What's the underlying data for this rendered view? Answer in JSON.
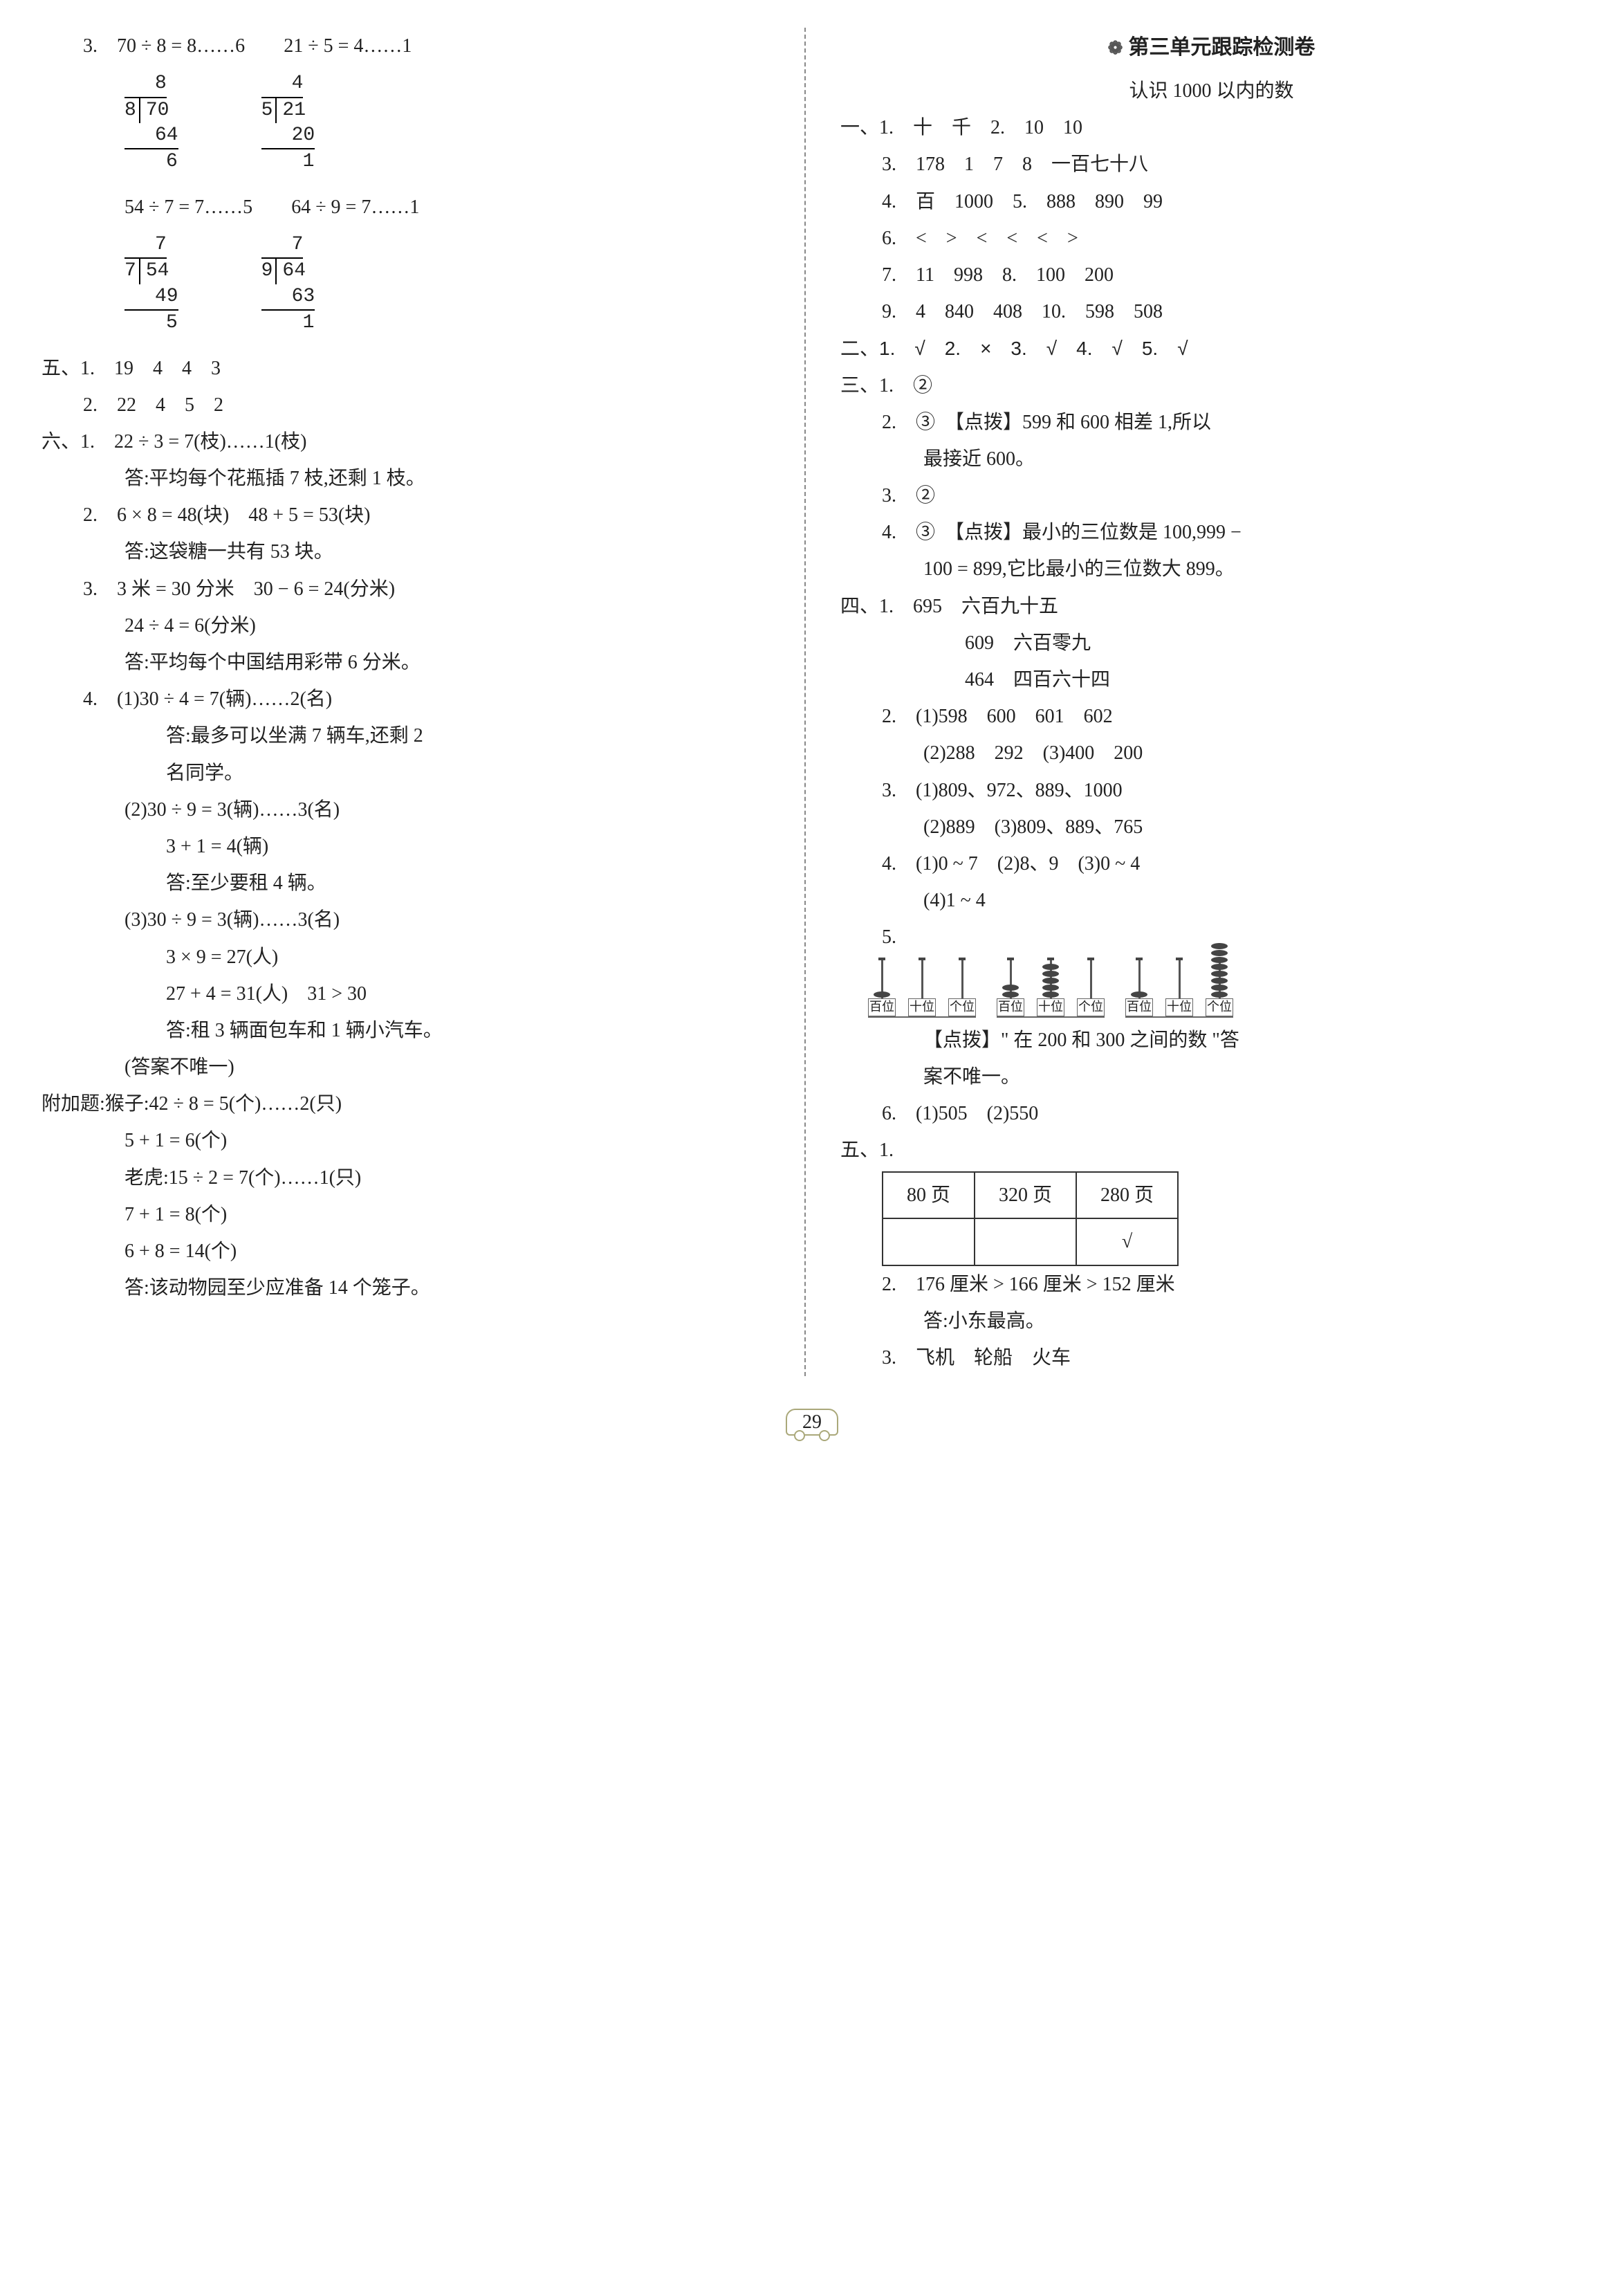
{
  "left": {
    "p3": {
      "eq1": "70 ÷ 8 = 8……6",
      "eq2": "21 ÷ 5 = 4……1",
      "eq3": "54 ÷ 7 = 7……5",
      "eq4": "64 ÷ 9 = 7……1"
    },
    "longdiv": {
      "a": {
        "divisor": "8",
        "dividend": "70",
        "quot": "8",
        "sub": "64",
        "rem": "6"
      },
      "b": {
        "divisor": "5",
        "dividend": "21",
        "quot": "4",
        "sub": "20",
        "rem": "1"
      },
      "c": {
        "divisor": "7",
        "dividend": "54",
        "quot": "7",
        "sub": "49",
        "rem": "5"
      },
      "d": {
        "divisor": "9",
        "dividend": "64",
        "quot": "7",
        "sub": "63",
        "rem": "1"
      }
    },
    "five": {
      "l1": "五、1.　19　4　4　3",
      "l2": "2.　22　4　5　2"
    },
    "six": {
      "l1": "六、1.　22 ÷ 3 = 7(枝)……1(枝)",
      "l1a": "答:平均每个花瓶插 7 枝,还剩 1 枝。",
      "l2": "2.　6 × 8 = 48(块)　48 + 5 = 53(块)",
      "l2a": "答:这袋糖一共有 53 块。",
      "l3": "3.　3 米 = 30 分米　30 − 6 = 24(分米)",
      "l3a": "24 ÷ 4 = 6(分米)",
      "l3b": "答:平均每个中国结用彩带 6 分米。",
      "l4": "4.　(1)30 ÷ 4 = 7(辆)……2(名)",
      "l4a": "答:最多可以坐满 7 辆车,还剩 2",
      "l4b": "名同学。",
      "l4c": "(2)30 ÷ 9 = 3(辆)……3(名)",
      "l4d": "3 + 1 = 4(辆)",
      "l4e": "答:至少要租 4 辆。",
      "l4f": "(3)30 ÷ 9 = 3(辆)……3(名)",
      "l4g": "3 × 9 = 27(人)",
      "l4h": "27 + 4 = 31(人)　31 > 30",
      "l4i": "答:租 3 辆面包车和 1 辆小汽车。",
      "l4j": "(答案不唯一)"
    },
    "extra": {
      "l1": "附加题:猴子:42 ÷ 8 = 5(个)……2(只)",
      "l2": "5 + 1 = 6(个)",
      "l3": "老虎:15 ÷ 2 = 7(个)……1(只)",
      "l4": "7 + 1 = 8(个)",
      "l5": "6 + 8 = 14(个)",
      "l6": "答:该动物园至少应准备 14 个笼子。"
    }
  },
  "right": {
    "title_paw": "❁",
    "title": "第三单元跟踪检测卷",
    "subtitle": "认识 1000 以内的数",
    "one": {
      "l1": "一、1.　十　千　2.　10　10",
      "l2": "3.　178　1　7　8　一百七十八",
      "l3": "4.　百　1000　5.　888　890　99",
      "l4": "6.　<　>　<　<　<　>",
      "l5": "7.　11　998　8.　100　200",
      "l6": "9.　4　840　408　10.　598　508"
    },
    "two": "二、1.　√　2.　×　3.　√　4.　√　5.　√",
    "three": {
      "l1": "三、1.　②",
      "l2": "2.　③　【点拨】599 和 600 相差 1,所以",
      "l2a": "最接近 600。",
      "l3": "3.　②",
      "l4": "4.　③　【点拨】最小的三位数是 100,999 −",
      "l4a": "100 = 899,它比最小的三位数大 899。"
    },
    "four": {
      "l1": "四、1.　695　六百九十五",
      "l1a": "609　六百零九",
      "l1b": "464　四百六十四",
      "l2": "2.　(1)598　600　601　602",
      "l2a": "(2)288　292　(3)400　200",
      "l3": "3.　(1)809、972、889、1000",
      "l3a": "(2)889　(3)809、889、765",
      "l4": "4.　(1)0 ~ 7　(2)8、9　(3)0 ~ 4",
      "l4a": "(4)1 ~ 4",
      "l5": "5.",
      "abacus_labels": [
        "百位",
        "十位",
        "个位"
      ],
      "abacus": [
        {
          "beads": [
            1,
            0,
            0
          ]
        },
        {
          "beads": [
            2,
            5,
            0
          ]
        },
        {
          "beads": [
            1,
            0,
            8
          ]
        }
      ],
      "l5note": "【点拨】\" 在 200 和 300 之间的数 \"答",
      "l5note2": "案不唯一。",
      "l6": "6.　(1)505　(2)550"
    },
    "five": {
      "l1": "五、1.",
      "table_row1": [
        "80 页",
        "320 页",
        "280 页"
      ],
      "table_row2": [
        "",
        "",
        "√"
      ],
      "l2": "2.　176 厘米 > 166 厘米 > 152 厘米",
      "l2a": "答:小东最高。",
      "l3": "3.　飞机　轮船　火车"
    }
  },
  "pagenum": "29"
}
